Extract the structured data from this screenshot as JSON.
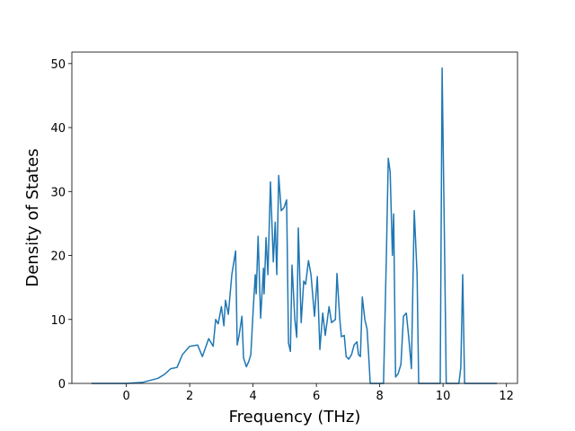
{
  "chart_data": {
    "type": "line",
    "xlabel": "Frequency (THz)",
    "ylabel": "Density of States",
    "xlim": [
      -1.72,
      12.35
    ],
    "ylim": [
      0,
      51.8
    ],
    "xticks": [
      0,
      2,
      4,
      6,
      8,
      10,
      12
    ],
    "yticks": [
      0,
      10,
      20,
      30,
      40,
      50
    ],
    "grid": false,
    "series": [
      {
        "color": "#1f77b4",
        "x": [
          -1.1,
          0,
          0.5,
          1.0,
          1.2,
          1.4,
          1.6,
          1.77,
          2.0,
          2.25,
          2.4,
          2.6,
          2.74,
          2.82,
          2.9,
          3.0,
          3.08,
          3.13,
          3.22,
          3.33,
          3.45,
          3.5,
          3.56,
          3.65,
          3.7,
          3.79,
          3.87,
          3.93,
          4.01,
          4.07,
          4.1,
          4.16,
          4.24,
          4.33,
          4.35,
          4.41,
          4.47,
          4.55,
          4.64,
          4.7,
          4.75,
          4.81,
          4.89,
          4.98,
          5.06,
          5.12,
          5.18,
          5.23,
          5.32,
          5.38,
          5.43,
          5.52,
          5.6,
          5.66,
          5.75,
          5.83,
          5.94,
          6.03,
          6.11,
          6.2,
          6.28,
          6.4,
          6.48,
          6.6,
          6.65,
          6.74,
          6.79,
          6.88,
          6.94,
          7.02,
          7.11,
          7.19,
          7.28,
          7.33,
          7.39,
          7.45,
          7.53,
          7.6,
          7.65,
          7.7,
          8.12,
          8.21,
          8.27,
          8.33,
          8.4,
          8.44,
          8.5,
          8.58,
          8.67,
          8.75,
          8.84,
          8.92,
          9.0,
          9.09,
          9.18,
          9.23,
          9.91,
          9.97,
          10.05,
          10.1,
          10.5,
          10.56,
          10.62,
          10.68,
          11.7
        ],
        "values": [
          0,
          0,
          0.15,
          0.8,
          1.4,
          2.3,
          2.5,
          4.5,
          5.8,
          6,
          4.2,
          7,
          5.8,
          10,
          9.3,
          12,
          9,
          13,
          10.8,
          17,
          20.7,
          6,
          7.5,
          10.5,
          4,
          2.6,
          3.5,
          4.5,
          12,
          17,
          14,
          23,
          10.2,
          18,
          14,
          22.8,
          17,
          31.5,
          19,
          25.2,
          17,
          32.5,
          27,
          27.5,
          28.7,
          6.3,
          5,
          18.5,
          10,
          7.2,
          24.3,
          9.5,
          16,
          15.5,
          19.2,
          17,
          10.5,
          16.7,
          5.3,
          11,
          7.5,
          12,
          9.5,
          10,
          17.2,
          10,
          7.3,
          7.5,
          4.2,
          3.8,
          4.5,
          6,
          6.5,
          4.5,
          4.2,
          13.5,
          10,
          8.5,
          4.5,
          0,
          0,
          20,
          35.2,
          33,
          20,
          26.5,
          1,
          1.5,
          3,
          10.5,
          11,
          7,
          2.3,
          27,
          17,
          0,
          0,
          49.3,
          20,
          0,
          0,
          2.5,
          17,
          0,
          0
        ]
      }
    ]
  }
}
